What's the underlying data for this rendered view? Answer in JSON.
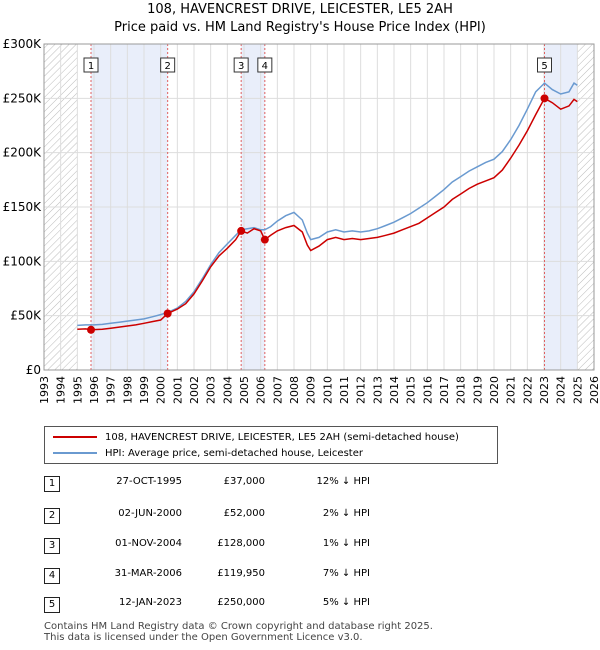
{
  "title_line1": "108, HAVENCREST DRIVE, LEICESTER, LE5 2AH",
  "title_line2": "Price paid vs. HM Land Registry's House Price Index (HPI)",
  "chart_data": {
    "type": "line",
    "x_range": [
      1993,
      2026
    ],
    "ylim": [
      0,
      300000
    ],
    "y_ticks": [
      0,
      50000,
      100000,
      150000,
      200000,
      250000,
      300000
    ],
    "y_tick_labels": [
      "£0",
      "£50K",
      "£100K",
      "£150K",
      "£200K",
      "£250K",
      "£300K"
    ],
    "x_ticks": [
      1993,
      1994,
      1995,
      1996,
      1997,
      1998,
      1999,
      2000,
      2001,
      2002,
      2003,
      2004,
      2005,
      2006,
      2007,
      2008,
      2009,
      2010,
      2011,
      2012,
      2013,
      2014,
      2015,
      2016,
      2017,
      2018,
      2019,
      2020,
      2021,
      2022,
      2023,
      2024,
      2025,
      2026
    ],
    "hatched_before": 1995.0,
    "hatched_after": 2025.0,
    "grid": true,
    "series": [
      {
        "name": "108, HAVENCREST DRIVE, LEICESTER, LE5 2AH (semi-detached house)",
        "color": "#cc0000",
        "points": [
          [
            1995.0,
            37500
          ],
          [
            1995.5,
            37800
          ],
          [
            1995.82,
            37000
          ],
          [
            1996.5,
            37500
          ],
          [
            1997.0,
            38500
          ],
          [
            1997.5,
            39500
          ],
          [
            1998.0,
            40500
          ],
          [
            1998.5,
            41500
          ],
          [
            1999.0,
            43000
          ],
          [
            1999.5,
            44500
          ],
          [
            2000.0,
            46000
          ],
          [
            2000.42,
            52000
          ],
          [
            2001.0,
            56000
          ],
          [
            2001.5,
            61000
          ],
          [
            2002.0,
            70000
          ],
          [
            2002.5,
            82000
          ],
          [
            2003.0,
            95000
          ],
          [
            2003.5,
            105000
          ],
          [
            2004.0,
            112000
          ],
          [
            2004.5,
            120000
          ],
          [
            2004.83,
            128000
          ],
          [
            2005.2,
            126000
          ],
          [
            2005.6,
            130000
          ],
          [
            2006.0,
            128000
          ],
          [
            2006.25,
            119950
          ],
          [
            2006.6,
            124000
          ],
          [
            2007.0,
            128000
          ],
          [
            2007.5,
            131000
          ],
          [
            2008.0,
            133000
          ],
          [
            2008.5,
            127000
          ],
          [
            2008.8,
            115000
          ],
          [
            2009.0,
            110000
          ],
          [
            2009.5,
            114000
          ],
          [
            2010.0,
            120000
          ],
          [
            2010.5,
            122000
          ],
          [
            2011.0,
            120000
          ],
          [
            2011.5,
            121000
          ],
          [
            2012.0,
            120000
          ],
          [
            2012.5,
            121000
          ],
          [
            2013.0,
            122000
          ],
          [
            2013.5,
            124000
          ],
          [
            2014.0,
            126000
          ],
          [
            2014.5,
            129000
          ],
          [
            2015.0,
            132000
          ],
          [
            2015.5,
            135000
          ],
          [
            2016.0,
            140000
          ],
          [
            2016.5,
            145000
          ],
          [
            2017.0,
            150000
          ],
          [
            2017.5,
            157000
          ],
          [
            2018.0,
            162000
          ],
          [
            2018.5,
            167000
          ],
          [
            2019.0,
            171000
          ],
          [
            2019.5,
            174000
          ],
          [
            2020.0,
            177000
          ],
          [
            2020.5,
            184000
          ],
          [
            2021.0,
            195000
          ],
          [
            2021.5,
            207000
          ],
          [
            2022.0,
            220000
          ],
          [
            2022.5,
            235000
          ],
          [
            2023.03,
            250000
          ],
          [
            2023.5,
            246000
          ],
          [
            2024.0,
            240000
          ],
          [
            2024.5,
            243000
          ],
          [
            2024.8,
            249000
          ],
          [
            2025.0,
            247000
          ]
        ]
      },
      {
        "name": "HPI: Average price, semi-detached house, Leicester",
        "color": "#6a9ad0",
        "points": [
          [
            1995.0,
            41000
          ],
          [
            1995.5,
            41500
          ],
          [
            1996.0,
            41500
          ],
          [
            1996.5,
            42000
          ],
          [
            1997.0,
            43000
          ],
          [
            1997.5,
            44000
          ],
          [
            1998.0,
            45000
          ],
          [
            1998.5,
            46000
          ],
          [
            1999.0,
            47000
          ],
          [
            1999.5,
            49000
          ],
          [
            2000.0,
            51000
          ],
          [
            2000.42,
            53000
          ],
          [
            2001.0,
            57000
          ],
          [
            2001.5,
            63000
          ],
          [
            2002.0,
            72000
          ],
          [
            2002.5,
            84000
          ],
          [
            2003.0,
            97000
          ],
          [
            2003.5,
            108000
          ],
          [
            2004.0,
            116000
          ],
          [
            2004.5,
            124000
          ],
          [
            2004.83,
            129000
          ],
          [
            2005.2,
            130000
          ],
          [
            2005.6,
            131000
          ],
          [
            2006.0,
            129000
          ],
          [
            2006.25,
            129000
          ],
          [
            2006.6,
            132000
          ],
          [
            2007.0,
            137000
          ],
          [
            2007.5,
            142000
          ],
          [
            2008.0,
            145000
          ],
          [
            2008.5,
            138000
          ],
          [
            2008.8,
            126000
          ],
          [
            2009.0,
            120000
          ],
          [
            2009.5,
            122000
          ],
          [
            2010.0,
            127000
          ],
          [
            2010.5,
            129000
          ],
          [
            2011.0,
            127000
          ],
          [
            2011.5,
            128000
          ],
          [
            2012.0,
            127000
          ],
          [
            2012.5,
            128000
          ],
          [
            2013.0,
            130000
          ],
          [
            2013.5,
            133000
          ],
          [
            2014.0,
            136000
          ],
          [
            2014.5,
            140000
          ],
          [
            2015.0,
            144000
          ],
          [
            2015.5,
            149000
          ],
          [
            2016.0,
            154000
          ],
          [
            2016.5,
            160000
          ],
          [
            2017.0,
            166000
          ],
          [
            2017.5,
            173000
          ],
          [
            2018.0,
            178000
          ],
          [
            2018.5,
            183000
          ],
          [
            2019.0,
            187000
          ],
          [
            2019.5,
            191000
          ],
          [
            2020.0,
            194000
          ],
          [
            2020.5,
            201000
          ],
          [
            2021.0,
            212000
          ],
          [
            2021.5,
            225000
          ],
          [
            2022.0,
            240000
          ],
          [
            2022.5,
            256000
          ],
          [
            2023.03,
            264000
          ],
          [
            2023.5,
            258000
          ],
          [
            2024.0,
            254000
          ],
          [
            2024.5,
            256000
          ],
          [
            2024.8,
            264000
          ],
          [
            2025.0,
            262000
          ]
        ]
      }
    ],
    "sales": [
      {
        "num": "1",
        "x": 1995.82,
        "price": 37000
      },
      {
        "num": "2",
        "x": 2000.42,
        "price": 52000
      },
      {
        "num": "3",
        "x": 2004.83,
        "price": 128000
      },
      {
        "num": "4",
        "x": 2006.25,
        "price": 119950
      },
      {
        "num": "5",
        "x": 2023.03,
        "price": 250000
      }
    ]
  },
  "legend": {
    "series1": "108, HAVENCREST DRIVE, LEICESTER, LE5 2AH (semi-detached house)",
    "series2": "HPI: Average price, semi-detached house, Leicester"
  },
  "transactions": [
    {
      "num": "1",
      "date": "27-OCT-1995",
      "price": "£37,000",
      "hpi": "12% ↓ HPI"
    },
    {
      "num": "2",
      "date": "02-JUN-2000",
      "price": "£52,000",
      "hpi": "2% ↓ HPI"
    },
    {
      "num": "3",
      "date": "01-NOV-2004",
      "price": "£128,000",
      "hpi": "1% ↓ HPI"
    },
    {
      "num": "4",
      "date": "31-MAR-2006",
      "price": "£119,950",
      "hpi": "7% ↓ HPI"
    },
    {
      "num": "5",
      "date": "12-JAN-2023",
      "price": "£250,000",
      "hpi": "5% ↓ HPI"
    }
  ],
  "footer_line1": "Contains HM Land Registry data © Crown copyright and database right 2025.",
  "footer_line2": "This data is licensed under the Open Government Licence v3.0."
}
